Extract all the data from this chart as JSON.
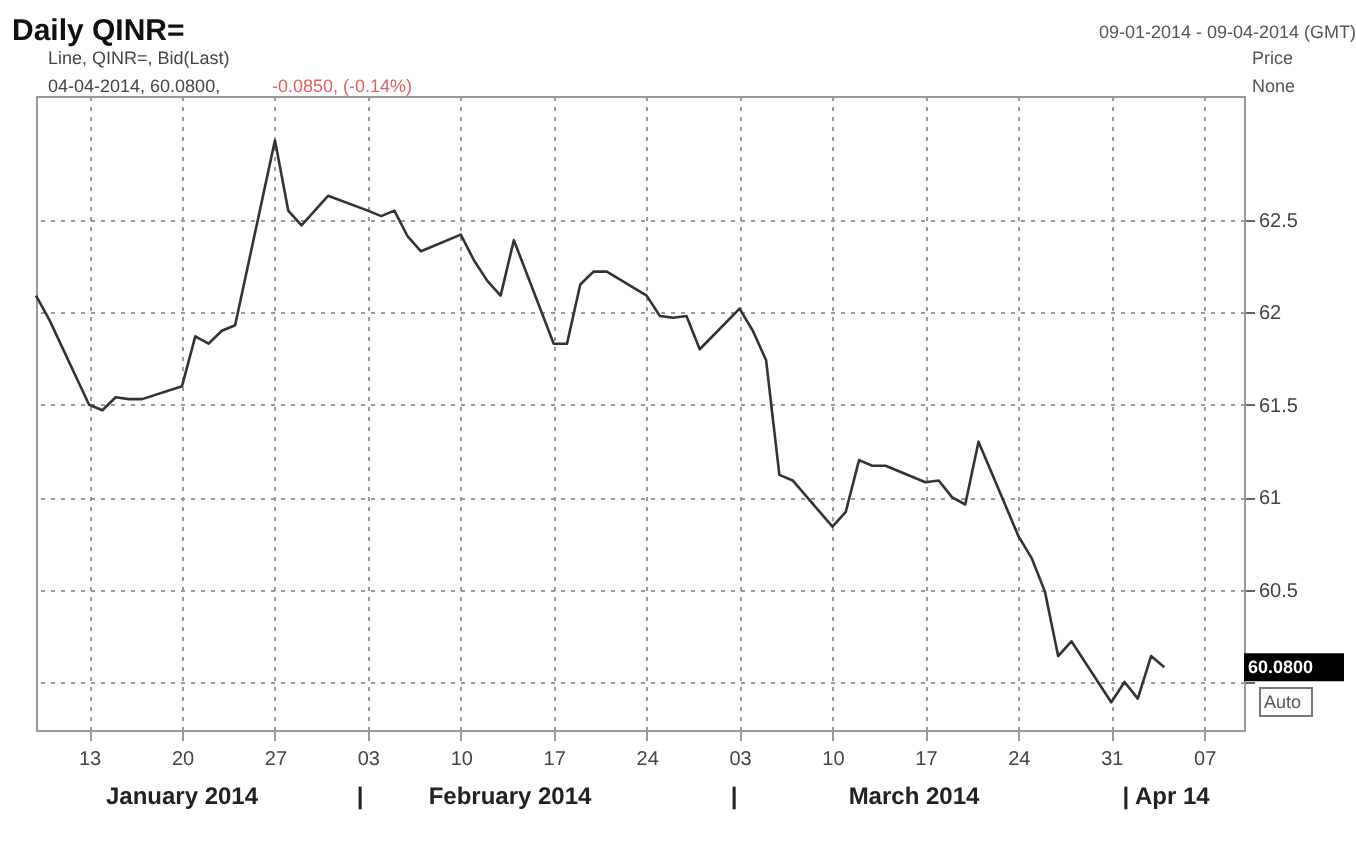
{
  "chart_data": {
    "type": "line",
    "title": "Daily QINR=",
    "subtitle": "09-01-2014 - 09-04-2014 (GMT)",
    "ylabel": "Price",
    "x": [
      "2014-01-09",
      "2014-01-10",
      "2014-01-13",
      "2014-01-14",
      "2014-01-15",
      "2014-01-16",
      "2014-01-17",
      "2014-01-20",
      "2014-01-21",
      "2014-01-22",
      "2014-01-23",
      "2014-01-24",
      "2014-01-27",
      "2014-01-28",
      "2014-01-29",
      "2014-01-30",
      "2014-01-31",
      "2014-02-03",
      "2014-02-04",
      "2014-02-05",
      "2014-02-06",
      "2014-02-07",
      "2014-02-10",
      "2014-02-11",
      "2014-02-12",
      "2014-02-13",
      "2014-02-14",
      "2014-02-17",
      "2014-02-18",
      "2014-02-19",
      "2014-02-20",
      "2014-02-21",
      "2014-02-24",
      "2014-02-25",
      "2014-02-26",
      "2014-02-27",
      "2014-02-28",
      "2014-03-03",
      "2014-03-04",
      "2014-03-05",
      "2014-03-06",
      "2014-03-07",
      "2014-03-10",
      "2014-03-11",
      "2014-03-12",
      "2014-03-13",
      "2014-03-14",
      "2014-03-17",
      "2014-03-18",
      "2014-03-19",
      "2014-03-20",
      "2014-03-21",
      "2014-03-24",
      "2014-03-25",
      "2014-03-26",
      "2014-03-27",
      "2014-03-28",
      "2014-03-31",
      "2014-04-01",
      "2014-04-02",
      "2014-04-03",
      "2014-04-04"
    ],
    "series": [
      {
        "color": "#333333",
        "values": [
          62.09,
          61.96,
          61.5,
          61.47,
          61.54,
          61.53,
          61.53,
          61.6,
          61.87,
          61.83,
          61.9,
          61.93,
          62.93,
          62.55,
          62.47,
          62.55,
          62.63,
          62.55,
          62.52,
          62.55,
          62.41,
          62.33,
          62.42,
          62.28,
          62.17,
          62.09,
          62.39,
          61.83,
          61.83,
          62.15,
          62.22,
          62.22,
          62.09,
          61.98,
          61.97,
          61.98,
          61.8,
          62.02,
          61.9,
          61.74,
          61.12,
          61.09,
          60.84,
          60.92,
          61.2,
          61.17,
          61.17,
          61.08,
          61.09,
          61.0,
          60.96,
          61.3,
          60.79,
          60.67,
          60.49,
          60.14,
          60.22,
          59.89,
          60.0,
          59.91,
          60.14,
          60.08
        ]
      }
    ],
    "xlim": [
      "2014-01-09",
      "2014-04-10"
    ],
    "xticks": [
      {
        "value": "2014-01-13",
        "label": "13"
      },
      {
        "value": "2014-01-20",
        "label": "20"
      },
      {
        "value": "2014-01-27",
        "label": "27"
      },
      {
        "value": "2014-02-03",
        "label": "03"
      },
      {
        "value": "2014-02-10",
        "label": "10"
      },
      {
        "value": "2014-02-17",
        "label": "17"
      },
      {
        "value": "2014-02-24",
        "label": "24"
      },
      {
        "value": "2014-03-03",
        "label": "03"
      },
      {
        "value": "2014-03-10",
        "label": "10"
      },
      {
        "value": "2014-03-17",
        "label": "17"
      },
      {
        "value": "2014-03-24",
        "label": "24"
      },
      {
        "value": "2014-03-31",
        "label": "31"
      },
      {
        "value": "2014-04-07",
        "label": "07"
      }
    ],
    "ylim": [
      59.74,
      63.17
    ],
    "yticks": [
      {
        "value": 60,
        "label": null
      },
      60.5,
      61,
      61.5,
      62,
      62.5
    ],
    "grid": true,
    "marker": "none",
    "line_style": "solid",
    "annotations": [
      "Line, QINR=, Bid(Last)",
      "04-04-2014, 60.0800,",
      "-0.0850, (-0.14%)",
      "None",
      "Auto",
      "60.0800",
      "January 2014",
      "|",
      "February 2014",
      "|",
      "March 2014",
      "| Apr 14"
    ]
  }
}
